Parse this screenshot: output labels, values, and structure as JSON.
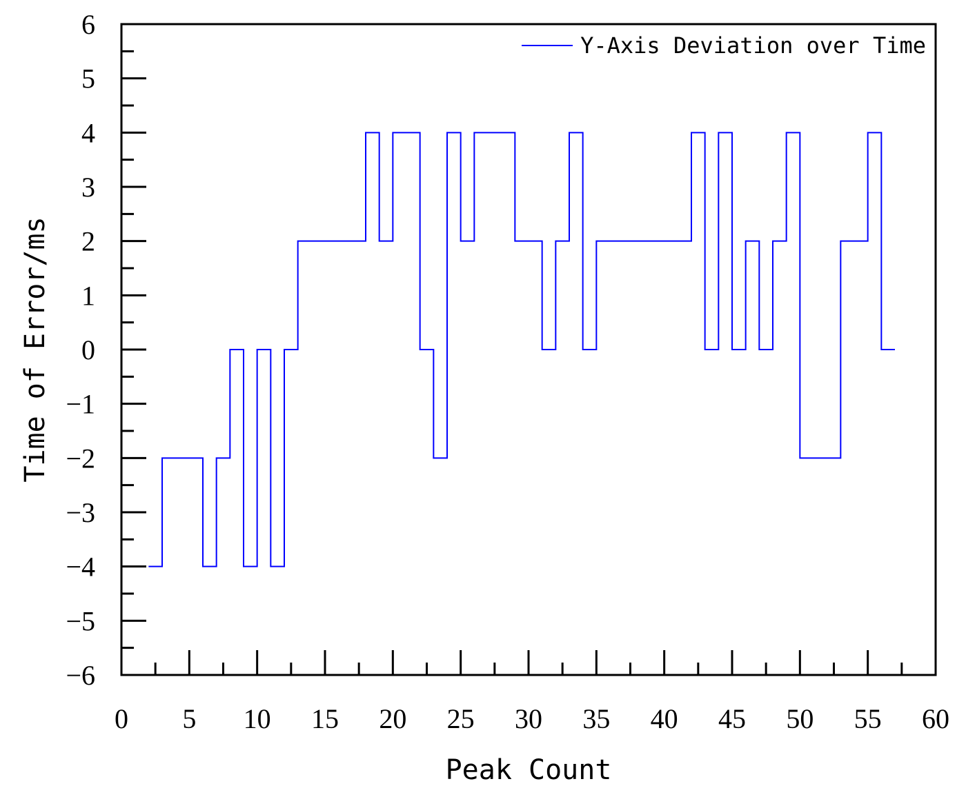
{
  "chart_data": {
    "type": "line",
    "step": true,
    "xlabel": "Peak Count",
    "ylabel": "Time of Error/ms",
    "xlim": [
      0,
      60
    ],
    "ylim": [
      -6,
      6
    ],
    "x_ticks": [
      0,
      5,
      10,
      15,
      20,
      25,
      30,
      35,
      40,
      45,
      50,
      55,
      60
    ],
    "y_ticks": [
      -6,
      -5,
      -4,
      -3,
      -2,
      -1,
      0,
      1,
      2,
      3,
      4,
      5,
      6
    ],
    "grid": false,
    "legend_position": "top-right",
    "series": [
      {
        "name": "Y-Axis Deviation over Time",
        "color": "#0000ff",
        "x": [
          2,
          3,
          4,
          5,
          6,
          7,
          8,
          9,
          10,
          11,
          12,
          13,
          14,
          15,
          16,
          17,
          18,
          19,
          20,
          21,
          22,
          23,
          24,
          25,
          26,
          27,
          28,
          29,
          30,
          31,
          32,
          33,
          34,
          35,
          36,
          37,
          38,
          39,
          40,
          41,
          42,
          43,
          44,
          45,
          46,
          47,
          48,
          49,
          50,
          51,
          52,
          53,
          54,
          55,
          56
        ],
        "values": [
          -4,
          -2,
          -2,
          -2,
          -4,
          -2,
          0,
          -4,
          0,
          -4,
          0,
          2,
          2,
          2,
          2,
          2,
          4,
          2,
          4,
          4,
          0,
          -2,
          4,
          2,
          4,
          4,
          4,
          2,
          2,
          0,
          2,
          4,
          0,
          2,
          2,
          2,
          2,
          2,
          2,
          2,
          4,
          0,
          4,
          0,
          2,
          0,
          2,
          4,
          -2,
          -2,
          -2,
          2,
          2,
          4,
          0
        ]
      }
    ]
  }
}
